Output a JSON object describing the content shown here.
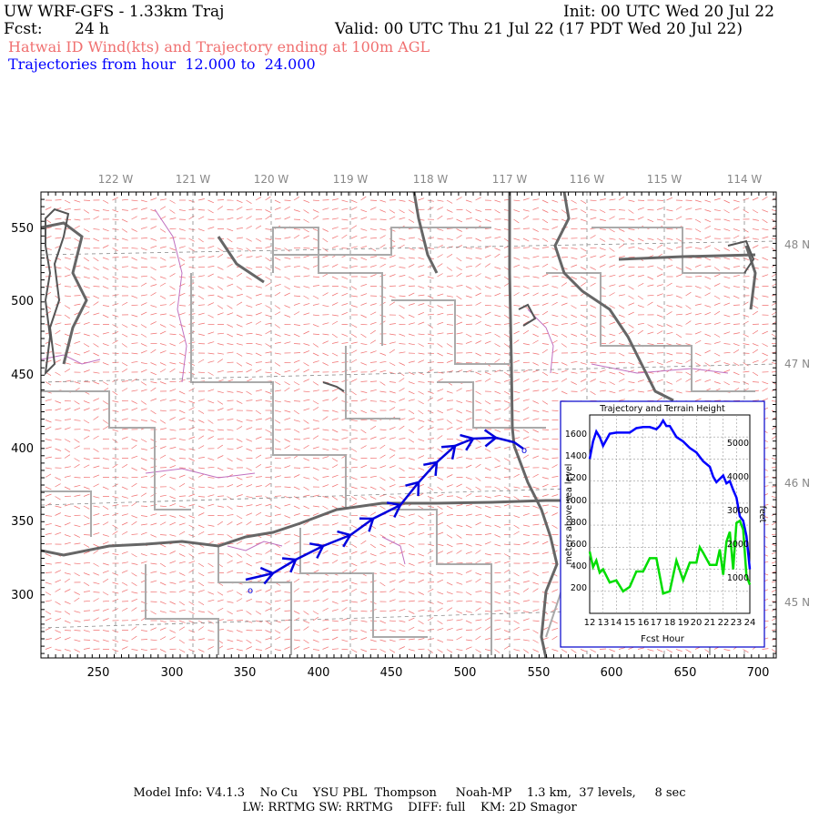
{
  "header": {
    "model": "UW WRF-GFS - 1.33km Traj",
    "init": "Init: 00 UTC Wed 20 Jul 22",
    "fcst_label": "Fcst:",
    "fcst_value": "24 h",
    "valid": "Valid: 00 UTC Thu 21 Jul 22 (17 PDT Wed 20 Jul 22)",
    "field": "Hatwai ID Wind(kts) and Trajectory ending at 100m AGL",
    "traj_prefix": "Trajectories from hour",
    "traj_from": "12.000",
    "traj_to_word": "to",
    "traj_to": "24.000"
  },
  "map": {
    "lon_labels": [
      "122 W",
      "121 W",
      "120 W",
      "119 W",
      "118 W",
      "117 W",
      "116 W",
      "115 W",
      "114 W"
    ],
    "lat_labels": [
      "48 N",
      "47 N",
      "46 N",
      "45 N"
    ],
    "x_ticks": [
      "250",
      "300",
      "350",
      "400",
      "450",
      "500",
      "550",
      "600",
      "650",
      "700"
    ],
    "y_ticks": [
      "550",
      "500",
      "450",
      "400",
      "350",
      "300"
    ],
    "colors": {
      "wind_barbs": "#f07070",
      "trajectory": "#0000dd",
      "state_lines": "#666666",
      "county_lines": "#aaaaaa",
      "rivers": "#c070c0"
    }
  },
  "inset": {
    "title": "Trajectory and Terrain Height",
    "xlabel": "Fcst Hour",
    "ylabel_left": "meters above sea level",
    "ylabel_right": "feet",
    "x_ticks": [
      "12",
      "13",
      "14",
      "15",
      "16",
      "17",
      "18",
      "19",
      "20",
      "21",
      "22",
      "23",
      "24"
    ],
    "y_ticks_m": [
      "200",
      "400",
      "600",
      "800",
      "1000",
      "1200",
      "1400",
      "1600"
    ],
    "y_ticks_ft": [
      "1000",
      "2000",
      "3000",
      "4000",
      "5000"
    ]
  },
  "chart_data": {
    "type": "line",
    "title": "Trajectory and Terrain Height",
    "xlabel": "Fcst Hour",
    "ylabel": "meters above sea level",
    "xlim": [
      12,
      24
    ],
    "ylim": [
      0,
      1800
    ],
    "series": [
      {
        "color": "#0000ff",
        "x": [
          12,
          12.25,
          12.5,
          12.75,
          13,
          13.5,
          14,
          14.5,
          15,
          15.5,
          16,
          16.5,
          17,
          17.25,
          17.5,
          17.75,
          18,
          18.5,
          19,
          19.5,
          20,
          20.5,
          21,
          21.25,
          21.5,
          22,
          22.25,
          22.5,
          22.75,
          23,
          23.25,
          23.5,
          23.75,
          24
        ],
        "y": [
          1400,
          1560,
          1650,
          1600,
          1520,
          1630,
          1640,
          1640,
          1640,
          1680,
          1690,
          1690,
          1670,
          1700,
          1750,
          1700,
          1700,
          1600,
          1560,
          1500,
          1460,
          1380,
          1330,
          1240,
          1190,
          1250,
          1180,
          1200,
          1120,
          1050,
          880,
          840,
          700,
          400
        ]
      },
      {
        "color": "#00dd00",
        "x": [
          12,
          12.25,
          12.5,
          12.75,
          13,
          13.5,
          14,
          14.5,
          15,
          15.5,
          16,
          16.5,
          17,
          17.5,
          18,
          18.5,
          19,
          19.5,
          20,
          20.25,
          20.5,
          21,
          21.5,
          21.75,
          22,
          22.25,
          22.5,
          22.75,
          23,
          23.25,
          23.5,
          23.75,
          24
        ],
        "y": [
          560,
          420,
          480,
          370,
          400,
          280,
          300,
          200,
          240,
          380,
          380,
          500,
          500,
          180,
          200,
          480,
          300,
          460,
          460,
          600,
          550,
          440,
          440,
          580,
          350,
          650,
          740,
          400,
          820,
          840,
          760,
          340,
          260
        ]
      }
    ]
  },
  "footer": {
    "line1": "Model Info: V4.1.3    No Cu    YSU PBL  Thompson     Noah-MP    1.3 km,  37 levels,     8 sec",
    "line2": "LW: RRTMG SW: RRTMG    DIFF: full    KM: 2D Smagor"
  }
}
